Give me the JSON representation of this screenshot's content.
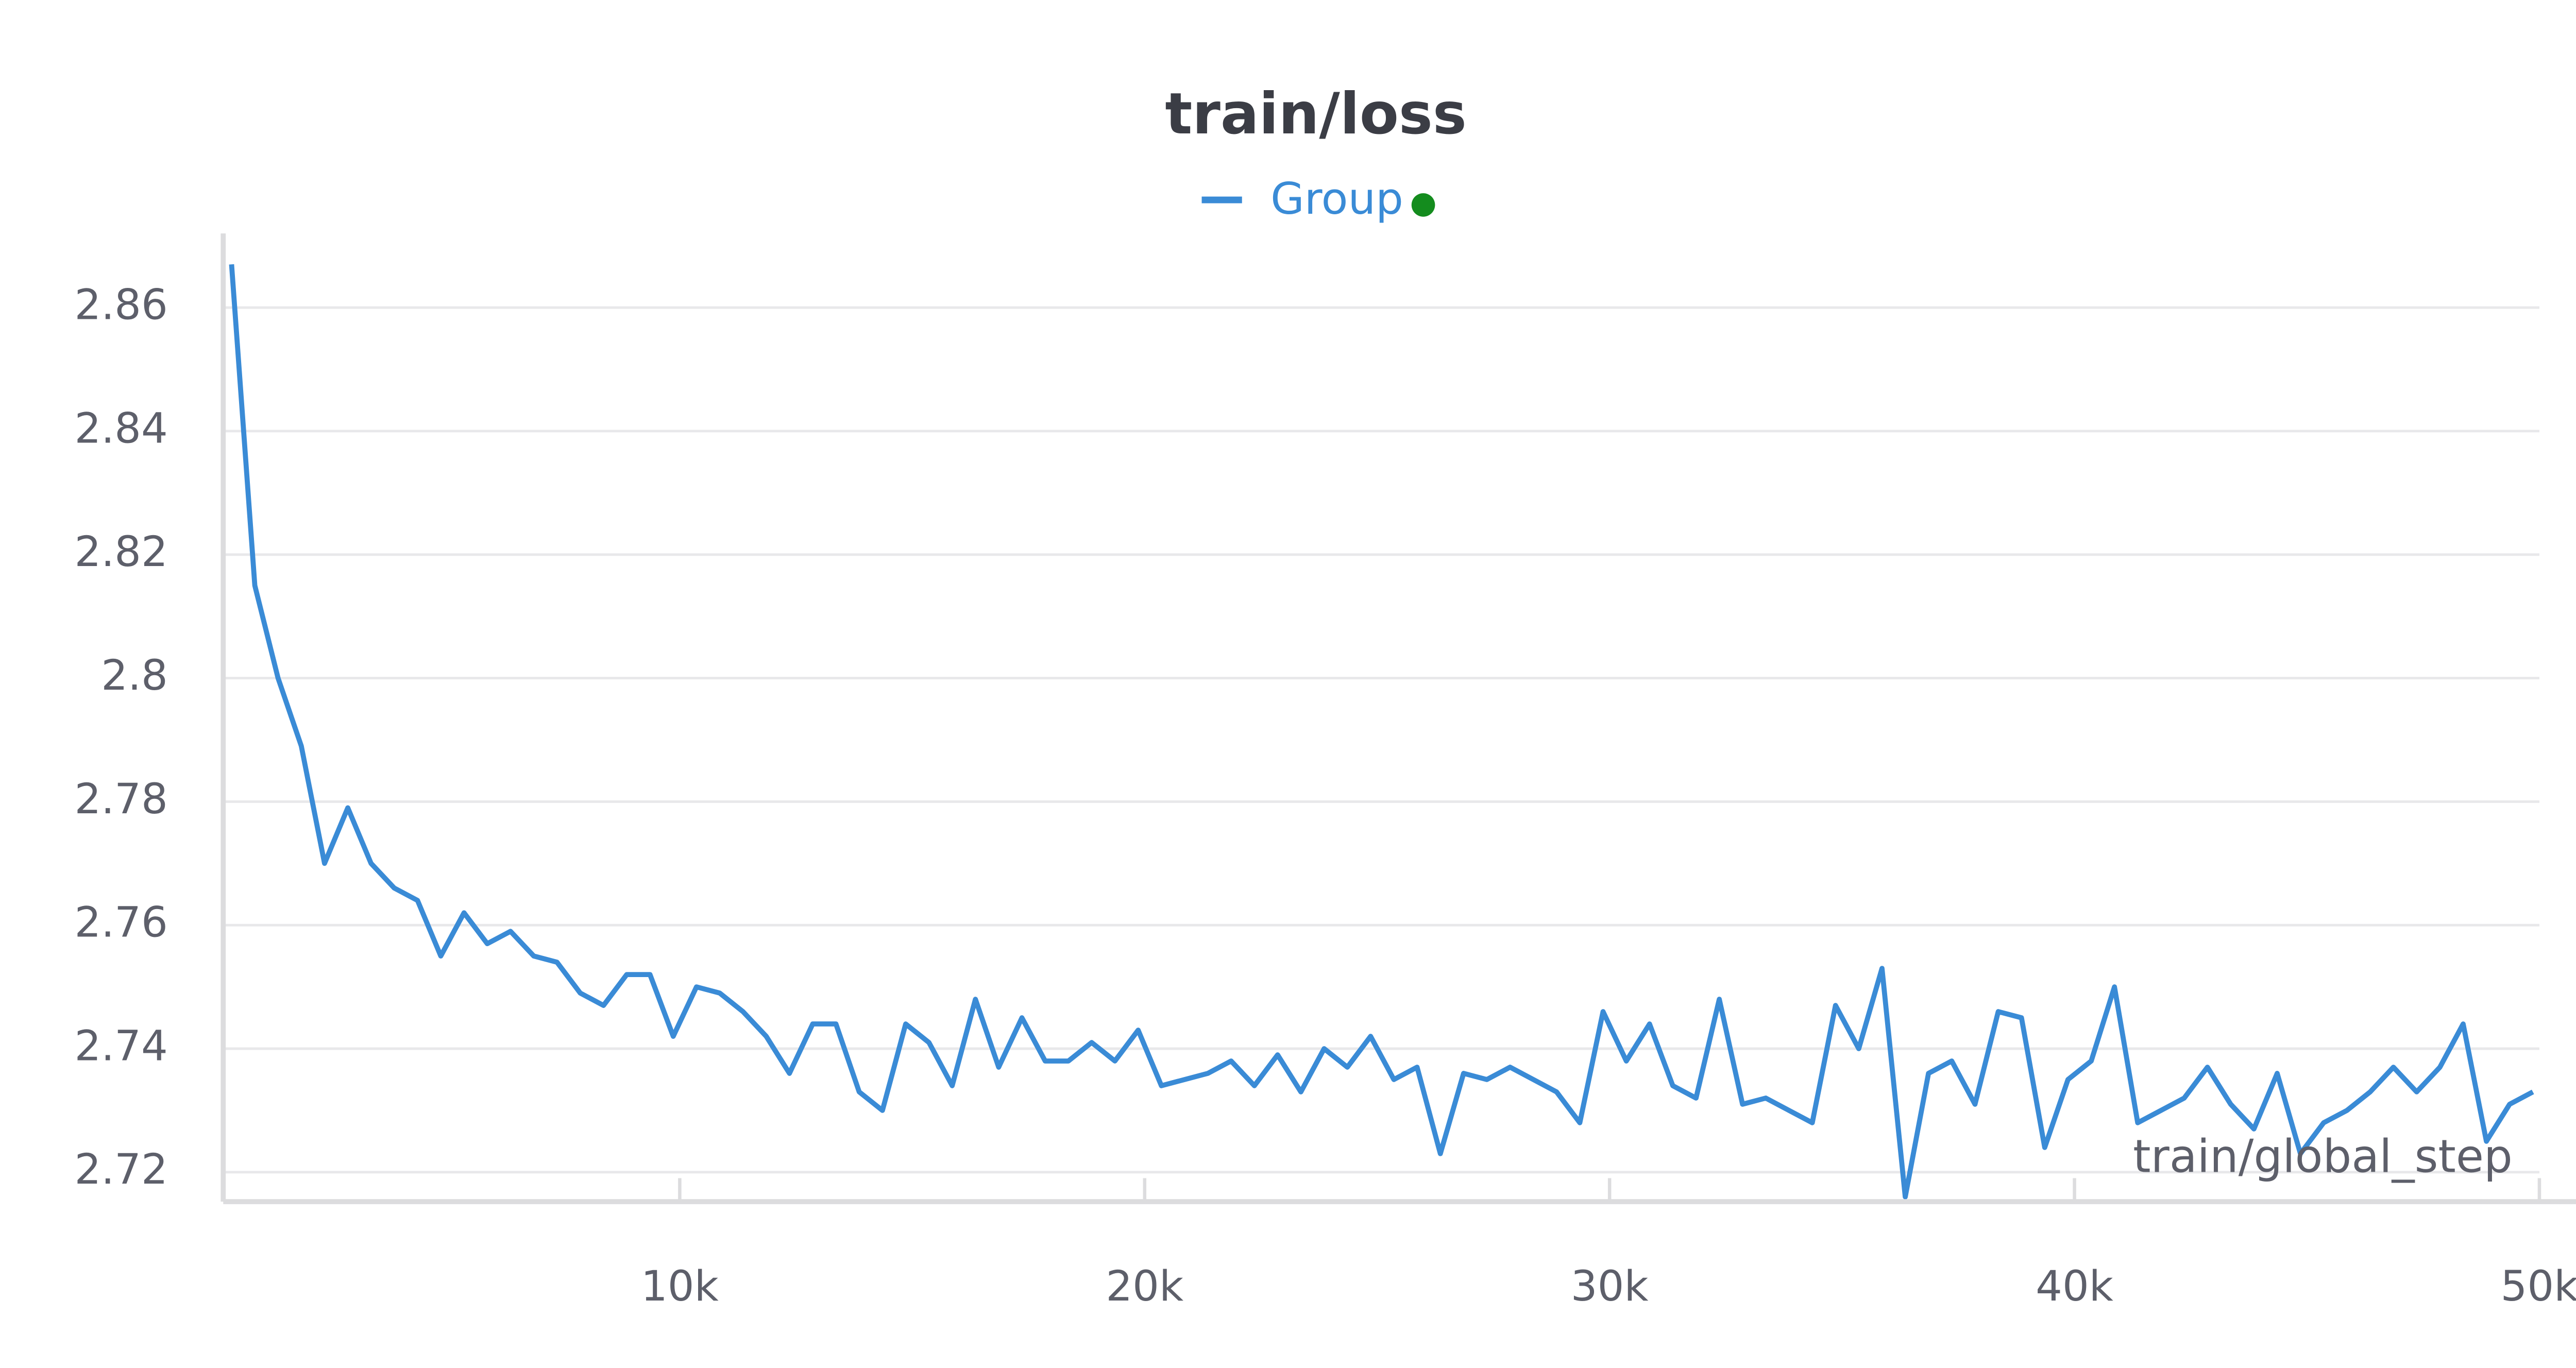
{
  "chart_data": {
    "type": "line",
    "title": "train/loss",
    "xlabel": "train/global_step",
    "xlim": [
      0,
      50000
    ],
    "ylim": [
      2.7155,
      2.872
    ],
    "xticks": [
      {
        "value": 10000,
        "label": "10k"
      },
      {
        "value": 20000,
        "label": "20k"
      },
      {
        "value": 30000,
        "label": "30k"
      },
      {
        "value": 40000,
        "label": "40k"
      },
      {
        "value": 50000,
        "label": "50k"
      }
    ],
    "yticks": [
      2.72,
      2.74,
      2.76,
      2.78,
      2.8,
      2.82,
      2.84,
      2.86
    ],
    "grid": true,
    "x": [
      360,
      860,
      1360,
      1860,
      2360,
      2860,
      3360,
      3860,
      4360,
      4860,
      5360,
      5860,
      6360,
      6860,
      7360,
      7860,
      8360,
      8860,
      9360,
      9860,
      10360,
      10860,
      11360,
      11860,
      12360,
      12860,
      13360,
      13860,
      14360,
      14860,
      15360,
      15860,
      16360,
      16860,
      17360,
      17860,
      18360,
      18860,
      19360,
      19860,
      20360,
      20860,
      21360,
      21860,
      22360,
      22860,
      23360,
      23860,
      24360,
      24860,
      25360,
      25860,
      26360,
      26860,
      27360,
      27860,
      28360,
      28860,
      29360,
      29860,
      30360,
      30860,
      31360,
      31860,
      32360,
      32860,
      33360,
      33860,
      34360,
      34860,
      35360,
      35860,
      36360,
      36860,
      37360,
      37860,
      38360,
      38860,
      39360,
      39860,
      40360,
      40860,
      41360,
      41860,
      42360,
      42860,
      43360,
      43860,
      44360,
      44860,
      45360,
      45860,
      46360,
      46860,
      47360,
      47860,
      48360,
      48860,
      49360,
      49860
    ],
    "series": [
      {
        "name": "Group",
        "color": "#3a8bd6",
        "values": [
          2.867,
          2.815,
          2.8,
          2.789,
          2.77,
          2.779,
          2.77,
          2.766,
          2.764,
          2.755,
          2.762,
          2.757,
          2.759,
          2.755,
          2.754,
          2.749,
          2.747,
          2.752,
          2.752,
          2.742,
          2.75,
          2.749,
          2.746,
          2.742,
          2.736,
          2.744,
          2.744,
          2.733,
          2.73,
          2.744,
          2.741,
          2.734,
          2.748,
          2.737,
          2.745,
          2.738,
          2.738,
          2.741,
          2.738,
          2.743,
          2.734,
          2.735,
          2.736,
          2.738,
          2.734,
          2.739,
          2.733,
          2.74,
          2.737,
          2.742,
          2.735,
          2.737,
          2.723,
          2.736,
          2.735,
          2.737,
          2.735,
          2.733,
          2.728,
          2.746,
          2.738,
          2.744,
          2.734,
          2.732,
          2.748,
          2.731,
          2.732,
          2.73,
          2.728,
          2.747,
          2.74,
          2.753,
          2.716,
          2.736,
          2.738,
          2.731,
          2.746,
          2.745,
          2.724,
          2.735,
          2.738,
          2.75,
          2.728,
          2.73,
          2.732,
          2.737,
          2.731,
          2.727,
          2.736,
          2.723,
          2.728,
          2.73,
          2.733,
          2.737,
          2.733,
          2.737,
          2.744,
          2.725,
          2.731,
          2.733
        ]
      }
    ]
  }
}
